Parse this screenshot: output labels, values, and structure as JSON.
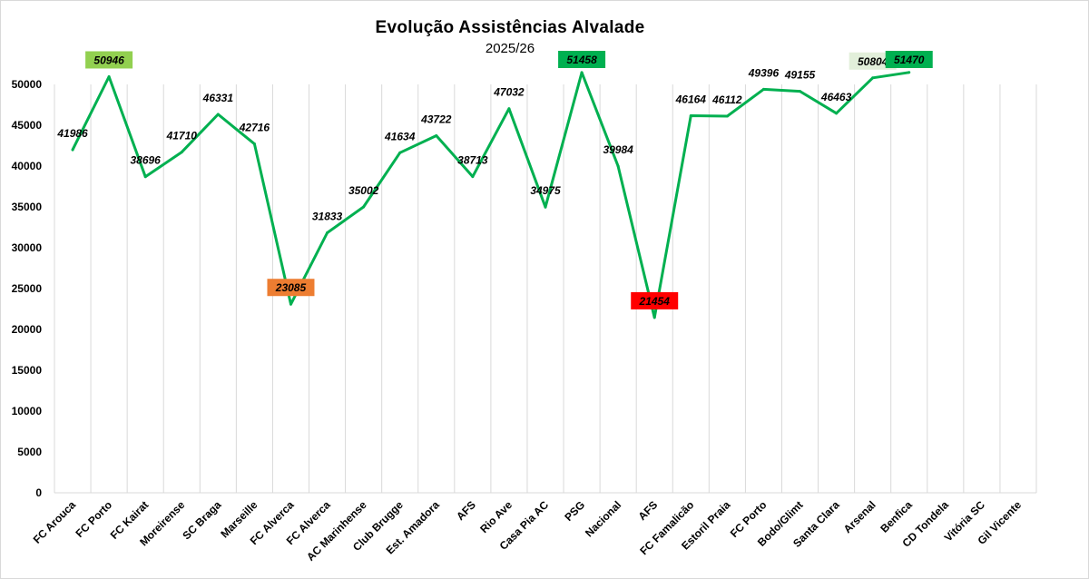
{
  "chart_data": {
    "type": "line",
    "title": "Evolução  Assistências  Alvalade",
    "subtitle": "2025/26",
    "xlabel": "",
    "ylabel": "",
    "ylim": [
      0,
      50000
    ],
    "yticks": [
      0,
      5000,
      10000,
      15000,
      20000,
      25000,
      30000,
      35000,
      40000,
      45000,
      50000
    ],
    "grid": "vertical",
    "legend": "none",
    "categories": [
      "FC Arouca",
      "FC Porto",
      "FC Kairat",
      "Moreirense",
      "SC Braga",
      "Marseille",
      "FC Alverca",
      "FC Alverca",
      "AC Marinhense",
      "Club Brugge",
      "Est. Amadora",
      "AFS",
      "Rio Ave",
      "Casa Pia AC",
      "PSG",
      "Nacional",
      "AFS",
      "FC Famalicão",
      "Estoril Praia",
      "FC Porto",
      "Bodo/Glimt",
      "Santa Clara",
      "Arsenal",
      "Benfica",
      "CD Tondela",
      "Vitória SC",
      "Gil Vicente"
    ],
    "series": [
      {
        "values": [
          41986,
          50946,
          38696,
          41710,
          46331,
          42716,
          23085,
          31833,
          35002,
          41634,
          43722,
          38713,
          47032,
          34975,
          51458,
          39984,
          21454,
          46164,
          46112,
          49396,
          49155,
          46463,
          50804,
          51470,
          null,
          null,
          null
        ]
      }
    ],
    "line_color": "#00b050",
    "highlighted_labels": [
      {
        "index": 1,
        "color": "#92d050"
      },
      {
        "index": 6,
        "color": "#ed7d31"
      },
      {
        "index": 14,
        "color": "#00b050"
      },
      {
        "index": 16,
        "color": "#ff0000"
      },
      {
        "index": 22,
        "color": "#e2efda"
      },
      {
        "index": 23,
        "color": "#00b050"
      }
    ]
  }
}
